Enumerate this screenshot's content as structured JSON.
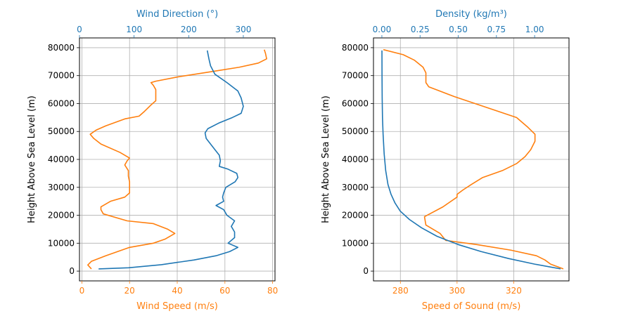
{
  "chart_data": [
    {
      "type": "line",
      "bottom_axis": {
        "label": "Wind Speed (m/s)",
        "ticks": [
          0,
          20,
          40,
          60,
          80
        ],
        "lim": [
          -1,
          81
        ]
      },
      "top_axis": {
        "label": "Wind Direction (°)",
        "ticks": [
          0,
          100,
          200,
          300
        ],
        "lim": [
          0,
          358
        ]
      },
      "ylabel": "Height Above Sea Level (m)",
      "yticks": [
        0,
        10000,
        20000,
        30000,
        40000,
        50000,
        60000,
        70000,
        80000
      ],
      "ylim": [
        -3500,
        83500
      ],
      "grid": true,
      "series": [
        {
          "axis": "bottom",
          "color": "#ff7f0e",
          "points": [
            [
              4,
              800
            ],
            [
              2.5,
              2200
            ],
            [
              4,
              3500
            ],
            [
              10,
              5500
            ],
            [
              15,
              7000
            ],
            [
              20,
              8500
            ],
            [
              30,
              10000
            ],
            [
              35,
              11500
            ],
            [
              39,
              13500
            ],
            [
              36,
              15000
            ],
            [
              30,
              17000
            ],
            [
              19,
              18000
            ],
            [
              9,
              20500
            ],
            [
              8,
              22000
            ],
            [
              8,
              23000
            ],
            [
              12,
              25000
            ],
            [
              18,
              26500
            ],
            [
              20,
              28000
            ],
            [
              20,
              30000
            ],
            [
              20,
              32000
            ],
            [
              19.5,
              34000
            ],
            [
              19.5,
              36000
            ],
            [
              18,
              38000
            ],
            [
              19,
              39500
            ],
            [
              20,
              40500
            ],
            [
              16,
              42500
            ],
            [
              8,
              45500
            ],
            [
              5,
              47500
            ],
            [
              3.5,
              49000
            ],
            [
              6,
              50500
            ],
            [
              10,
              52000
            ],
            [
              18,
              54500
            ],
            [
              24,
              55500
            ],
            [
              26,
              57000
            ],
            [
              29,
              59500
            ],
            [
              31,
              61000
            ],
            [
              31,
              65000
            ],
            [
              30,
              66500
            ],
            [
              29,
              67500
            ],
            [
              31,
              68000
            ],
            [
              40,
              69500
            ],
            [
              55,
              71500
            ],
            [
              66,
              73000
            ],
            [
              74,
              74500
            ],
            [
              77.5,
              76000
            ],
            [
              77,
              78000
            ],
            [
              76.5,
              79300
            ]
          ]
        },
        {
          "axis": "top",
          "color": "#1f77b4",
          "points": [
            [
              35,
              800
            ],
            [
              90,
              1200
            ],
            [
              150,
              2300
            ],
            [
              210,
              4000
            ],
            [
              250,
              5500
            ],
            [
              275,
              7000
            ],
            [
              290,
              8500
            ],
            [
              272,
              10000
            ],
            [
              284,
              12000
            ],
            [
              284,
              14000
            ],
            [
              278,
              16000
            ],
            [
              284,
              18000
            ],
            [
              270,
              20000
            ],
            [
              264,
              22000
            ],
            [
              250,
              23500
            ],
            [
              264,
              25000
            ],
            [
              262,
              26500
            ],
            [
              264,
              28000
            ],
            [
              268,
              30000
            ],
            [
              285,
              32000
            ],
            [
              290,
              33500
            ],
            [
              288,
              35000
            ],
            [
              272,
              36500
            ],
            [
              256,
              37500
            ],
            [
              258,
              39500
            ],
            [
              256,
              41500
            ],
            [
              248,
              43500
            ],
            [
              240,
              45500
            ],
            [
              232,
              47500
            ],
            [
              230,
              49500
            ],
            [
              235,
              51000
            ],
            [
              255,
              53000
            ],
            [
              280,
              55000
            ],
            [
              296,
              56500
            ],
            [
              300,
              59000
            ],
            [
              296,
              62000
            ],
            [
              290,
              64500
            ],
            [
              270,
              67500
            ],
            [
              248,
              70500
            ],
            [
              240,
              73500
            ],
            [
              237,
              76000
            ],
            [
              234,
              79000
            ]
          ]
        }
      ]
    },
    {
      "type": "line",
      "bottom_axis": {
        "label": "Speed of Sound (m/s)",
        "ticks": [
          280,
          300,
          320
        ],
        "lim": [
          270.5,
          339.5
        ]
      },
      "top_axis": {
        "label": "Density (kg/m³)",
        "ticks": [
          "0.00",
          "0.25",
          "0.50",
          "0.75",
          "1.00"
        ],
        "tick_values": [
          0,
          0.25,
          0.5,
          0.75,
          1.0
        ],
        "lim": [
          -0.055,
          1.225
        ]
      },
      "ylabel": "Height Above Sea Level (m)",
      "yticks": [
        0,
        10000,
        20000,
        30000,
        40000,
        50000,
        60000,
        70000,
        80000
      ],
      "ylim": [
        -3500,
        83500
      ],
      "grid": true,
      "series": [
        {
          "axis": "bottom",
          "color": "#ff7f0e",
          "points": [
            [
              337.5,
              800
            ],
            [
              333,
              2500
            ],
            [
              331,
              4000
            ],
            [
              328,
              5500
            ],
            [
              319,
              7500
            ],
            [
              307,
              9500
            ],
            [
              296,
              11000
            ],
            [
              294,
              13500
            ],
            [
              289,
              16500
            ],
            [
              288.5,
              19500
            ],
            [
              295,
              23000
            ],
            [
              300,
              26500
            ],
            [
              300,
              27500
            ],
            [
              302,
              29000
            ],
            [
              305,
              31000
            ],
            [
              309,
              33500
            ],
            [
              316,
              36000
            ],
            [
              321,
              38500
            ],
            [
              324,
              41000
            ],
            [
              326,
              43500
            ],
            [
              327.5,
              46500
            ],
            [
              327.5,
              49000
            ],
            [
              325,
              51500
            ],
            [
              321,
              55000
            ],
            [
              299,
              62500
            ],
            [
              290,
              66000
            ],
            [
              289,
              67500
            ],
            [
              289,
              71000
            ],
            [
              288,
              73000
            ],
            [
              285,
              75500
            ],
            [
              281,
              77500
            ],
            [
              274,
              79300
            ]
          ]
        },
        {
          "axis": "top",
          "color": "#1f77b4",
          "points": [
            [
              1.17,
              800
            ],
            [
              1.0,
              2500
            ],
            [
              0.83,
              4500
            ],
            [
              0.65,
              7000
            ],
            [
              0.5,
              9500
            ],
            [
              0.36,
              12500
            ],
            [
              0.26,
              15500
            ],
            [
              0.18,
              18500
            ],
            [
              0.12,
              21500
            ],
            [
              0.085,
              24500
            ],
            [
              0.06,
              27500
            ],
            [
              0.04,
              31000
            ],
            [
              0.025,
              36000
            ],
            [
              0.015,
              42000
            ],
            [
              0.008,
              49000
            ],
            [
              0.004,
              55000
            ],
            [
              0.002,
              62000
            ],
            [
              0.001,
              70000
            ],
            [
              0.0005,
              79000
            ]
          ]
        }
      ]
    }
  ]
}
